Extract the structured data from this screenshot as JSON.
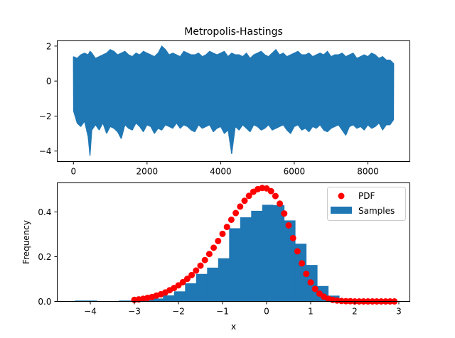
{
  "chart_data": [
    {
      "type": "line",
      "title": "Metropolis-Hastings",
      "xlabel": "",
      "ylabel": "",
      "xlim": [
        -440,
        9140
      ],
      "ylim": [
        -4.6,
        2.3
      ],
      "xticks": [
        0,
        2000,
        4000,
        6000,
        8000
      ],
      "yticks": [
        -4,
        -2,
        0,
        2
      ],
      "x": [
        0,
        100,
        200,
        300,
        400,
        450,
        500,
        600,
        700,
        800,
        900,
        1000,
        1100,
        1200,
        1300,
        1400,
        1500,
        1600,
        1700,
        1800,
        1900,
        2000,
        2100,
        2200,
        2300,
        2400,
        2500,
        2600,
        2700,
        2800,
        2900,
        3000,
        3100,
        3200,
        3300,
        3400,
        3500,
        3600,
        3700,
        3800,
        3900,
        4000,
        4100,
        4200,
        4300,
        4400,
        4500,
        4600,
        4700,
        4800,
        4900,
        5000,
        5100,
        5200,
        5300,
        5400,
        5500,
        5600,
        5700,
        5800,
        5900,
        6000,
        6100,
        6200,
        6300,
        6400,
        6500,
        6600,
        6700,
        6800,
        6900,
        7000,
        7100,
        7200,
        7300,
        7400,
        7500,
        7600,
        7700,
        7800,
        7900,
        8000,
        8100,
        8200,
        8300,
        8400,
        8500,
        8600,
        8700
      ],
      "series": [
        {
          "color": "#1f77b4",
          "upper": [
            1.4,
            1.3,
            1.5,
            1.6,
            1.5,
            1.7,
            1.6,
            1.3,
            1.4,
            1.5,
            1.6,
            1.8,
            1.7,
            1.5,
            1.6,
            1.7,
            1.5,
            1.4,
            1.6,
            1.5,
            1.7,
            1.6,
            1.5,
            1.4,
            1.6,
            2.0,
            1.8,
            1.5,
            1.6,
            1.5,
            1.4,
            1.7,
            1.6,
            1.5,
            1.5,
            1.6,
            1.4,
            1.5,
            1.7,
            1.6,
            1.5,
            1.6,
            1.7,
            1.4,
            1.6,
            1.5,
            1.5,
            1.4,
            1.6,
            1.3,
            1.5,
            1.6,
            1.7,
            1.5,
            1.4,
            1.6,
            1.8,
            1.5,
            1.6,
            1.4,
            1.5,
            1.6,
            1.7,
            1.5,
            1.5,
            1.6,
            1.4,
            1.5,
            1.6,
            1.5,
            1.7,
            1.4,
            1.5,
            1.5,
            1.6,
            1.4,
            1.5,
            1.6,
            1.3,
            1.4,
            1.5,
            1.4,
            1.6,
            1.5,
            1.3,
            1.4,
            1.2,
            1.2,
            1.0
          ],
          "lower": [
            -1.7,
            -2.4,
            -2.6,
            -2.3,
            -3.2,
            -4.3,
            -2.8,
            -2.5,
            -2.8,
            -2.4,
            -3.0,
            -2.6,
            -2.7,
            -2.9,
            -3.3,
            -2.5,
            -2.7,
            -2.8,
            -2.4,
            -2.6,
            -2.9,
            -2.5,
            -2.6,
            -3.0,
            -2.7,
            -2.8,
            -2.5,
            -2.6,
            -2.7,
            -2.4,
            -2.7,
            -2.5,
            -2.6,
            -2.8,
            -2.9,
            -2.5,
            -2.7,
            -2.6,
            -2.5,
            -2.9,
            -2.7,
            -2.6,
            -3.0,
            -2.8,
            -4.2,
            -2.6,
            -2.8,
            -2.5,
            -2.7,
            -2.9,
            -2.5,
            -2.6,
            -2.8,
            -2.7,
            -2.5,
            -2.8,
            -2.7,
            -2.6,
            -2.5,
            -2.8,
            -3.0,
            -2.6,
            -2.5,
            -2.8,
            -2.7,
            -2.9,
            -2.6,
            -2.7,
            -2.5,
            -2.8,
            -2.9,
            -2.7,
            -2.6,
            -2.5,
            -2.8,
            -3.1,
            -2.6,
            -2.5,
            -2.7,
            -2.6,
            -2.8,
            -2.5,
            -2.7,
            -2.6,
            -2.4,
            -2.8,
            -2.5,
            -2.5,
            -2.2
          ]
        }
      ],
      "grid": false
    },
    {
      "type": "bar",
      "title": "",
      "xlabel": "x",
      "ylabel": "Frequency",
      "xlim": [
        -4.75,
        3.25
      ],
      "ylim": [
        0,
        0.53
      ],
      "xticks": [
        -4,
        -3,
        -2,
        -1,
        0,
        1,
        2,
        3
      ],
      "yticks": [
        0.0,
        0.2,
        0.4
      ],
      "ytick_labels": [
        "0.0",
        "0.2",
        "0.4"
      ],
      "legend": {
        "position": "top-right",
        "entries": [
          "PDF",
          "Samples"
        ]
      },
      "series": [
        {
          "name": "Samples",
          "type": "bar",
          "color": "#1f77b4",
          "bin_edges": [
            -4.35,
            -4.1,
            -3.85,
            -3.6,
            -3.35,
            -3.1,
            -2.85,
            -2.6,
            -2.35,
            -2.1,
            -1.85,
            -1.6,
            -1.35,
            -1.1,
            -0.85,
            -0.6,
            -0.35,
            -0.1,
            0.15,
            0.4,
            0.65,
            0.9,
            1.15,
            1.4,
            1.65,
            1.9,
            2.15
          ],
          "values": [
            0.004,
            0.004,
            0.0,
            0.0,
            0.004,
            0.004,
            0.007,
            0.013,
            0.027,
            0.045,
            0.081,
            0.123,
            0.151,
            0.193,
            0.327,
            0.376,
            0.405,
            0.432,
            0.43,
            0.362,
            0.258,
            0.163,
            0.069,
            0.026,
            0.01,
            0.004
          ]
        },
        {
          "name": "PDF",
          "type": "scatter",
          "color": "#ff0000",
          "x": [
            -3.0,
            -2.9,
            -2.8,
            -2.7,
            -2.6,
            -2.5,
            -2.4,
            -2.3,
            -2.2,
            -2.1,
            -2.0,
            -1.9,
            -1.8,
            -1.7,
            -1.6,
            -1.5,
            -1.4,
            -1.3,
            -1.2,
            -1.1,
            -1.0,
            -0.9,
            -0.8,
            -0.7,
            -0.6,
            -0.5,
            -0.4,
            -0.3,
            -0.2,
            -0.1,
            0.0,
            0.1,
            0.2,
            0.3,
            0.4,
            0.5,
            0.6,
            0.7,
            0.8,
            0.9,
            1.0,
            1.1,
            1.2,
            1.3,
            1.4,
            1.5,
            1.6,
            1.7,
            1.8,
            1.9,
            2.0,
            2.1,
            2.2,
            2.3,
            2.4,
            2.5,
            2.6,
            2.7,
            2.8,
            2.9
          ],
          "values": [
            0.007,
            0.009,
            0.012,
            0.016,
            0.02,
            0.026,
            0.032,
            0.04,
            0.05,
            0.06,
            0.072,
            0.086,
            0.101,
            0.118,
            0.138,
            0.16,
            0.185,
            0.212,
            0.24,
            0.27,
            0.302,
            0.333,
            0.365,
            0.395,
            0.424,
            0.45,
            0.472,
            0.49,
            0.502,
            0.507,
            0.505,
            0.493,
            0.471,
            0.437,
            0.393,
            0.34,
            0.283,
            0.224,
            0.17,
            0.123,
            0.085,
            0.056,
            0.035,
            0.021,
            0.012,
            0.007,
            0.004,
            0.002,
            0.001,
            0.001,
            0.0,
            0.0,
            0.0,
            0.0,
            0.0,
            0.0,
            0.0,
            0.0,
            0.0,
            0.0
          ]
        }
      ],
      "grid": false
    }
  ]
}
